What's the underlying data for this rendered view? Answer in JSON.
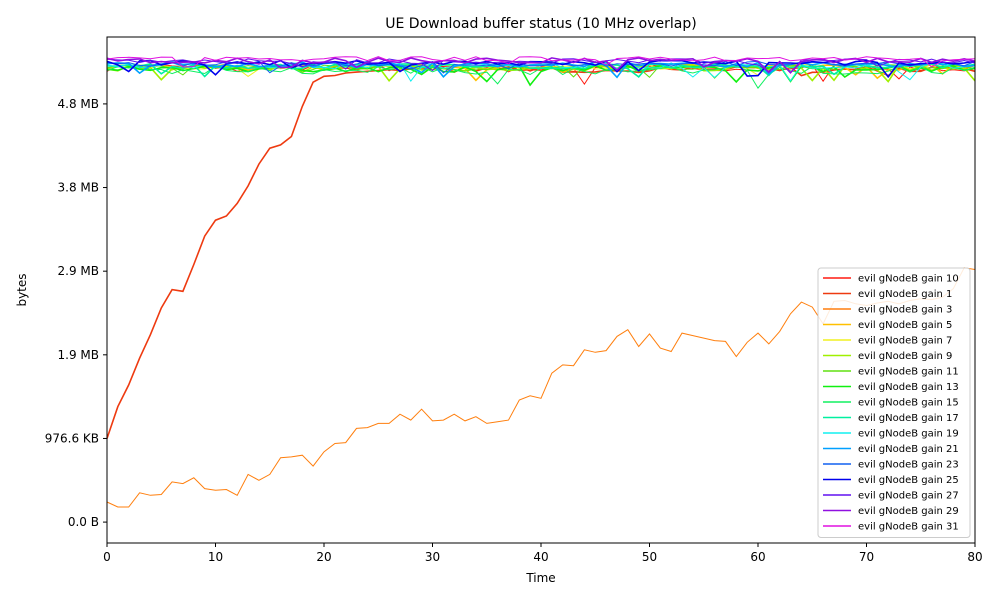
{
  "chart_data": {
    "type": "line",
    "title": "UE Download buffer status (10 MHz overlap)",
    "xlabel": "Time",
    "ylabel": "bytes",
    "xlim": [
      0,
      80
    ],
    "ylim": [
      -250000,
      5800000
    ],
    "x_ticks": [
      0,
      10,
      20,
      30,
      40,
      50,
      60,
      70,
      80
    ],
    "y_ticks": [
      {
        "value": 0,
        "label": "0.0 B"
      },
      {
        "value": 1000000,
        "label": "976.6 KB"
      },
      {
        "value": 2000000,
        "label": "1.9 MB"
      },
      {
        "value": 3000000,
        "label": "2.9 MB"
      },
      {
        "value": 4000000,
        "label": "3.8 MB"
      },
      {
        "value": 5000000,
        "label": "4.8 MB"
      }
    ],
    "grid": false,
    "legend_position": "lower-right",
    "series": [
      {
        "name": "evil gNodeB gain 10",
        "color": "#ff1a10",
        "base": 5430000,
        "amp": 40000
      },
      {
        "name": "evil gNodeB gain 1",
        "color": "#ee3a10",
        "values": [
          1000000,
          1380000,
          1640000,
          1960000,
          2240000,
          2560000,
          2780000,
          2760000,
          3080000,
          3420000,
          3610000,
          3660000,
          3810000,
          4020000,
          4280000,
          4470000,
          4510000,
          4610000,
          4970000,
          5260000,
          5330000,
          5340000,
          5370000,
          5380000,
          5390000,
          5400000,
          5410000,
          5400000,
          5420000,
          5420000,
          5410000
        ]
      },
      {
        "name": "evil gNodeB gain 3",
        "color": "#ff7f0e",
        "values": [
          240000,
          180000,
          180000,
          350000,
          320000,
          330000,
          480000,
          460000,
          530000,
          400000,
          380000,
          390000,
          320000,
          570000,
          500000,
          570000,
          770000,
          780000,
          800000,
          670000,
          840000,
          940000,
          950000,
          1120000,
          1130000,
          1180000,
          1180000,
          1290000,
          1220000,
          1350000,
          1210000,
          1220000,
          1290000,
          1210000,
          1260000,
          1180000,
          1200000,
          1220000,
          1460000,
          1510000,
          1480000,
          1780000,
          1880000,
          1870000,
          2060000,
          2030000,
          2050000,
          2220000,
          2300000,
          2100000,
          2250000,
          2080000,
          2040000,
          2260000,
          2230000,
          2200000,
          2170000,
          2160000,
          1980000,
          2150000,
          2260000,
          2130000,
          2280000,
          2490000,
          2630000,
          2570000,
          2370000,
          2640000,
          2650000,
          2610000,
          2590000,
          2620000,
          2640000,
          2610000,
          2650000,
          2670000,
          2660000,
          2690000,
          2790000,
          3040000,
          3020000
        ]
      },
      {
        "name": "evil gNodeB gain 5",
        "color": "#ffc000",
        "base": 5440000,
        "amp": 35000
      },
      {
        "name": "evil gNodeB gain 7",
        "color": "#f0f020",
        "base": 5445000,
        "amp": 30000
      },
      {
        "name": "evil gNodeB gain 9",
        "color": "#a0f000",
        "base": 5430000,
        "amp": 35000
      },
      {
        "name": "evil gNodeB gain 11",
        "color": "#60e010",
        "base": 5440000,
        "amp": 30000
      },
      {
        "name": "evil gNodeB gain 13",
        "color": "#10f010",
        "base": 5420000,
        "amp": 40000
      },
      {
        "name": "evil gNodeB gain 15",
        "color": "#10f060",
        "base": 5400000,
        "amp": 50000
      },
      {
        "name": "evil gNodeB gain 17",
        "color": "#00f0a0",
        "base": 5450000,
        "amp": 30000
      },
      {
        "name": "evil gNodeB gain 19",
        "color": "#10f0f0",
        "base": 5460000,
        "amp": 35000
      },
      {
        "name": "evil gNodeB gain 21",
        "color": "#00a0ff",
        "base": 5470000,
        "amp": 30000
      },
      {
        "name": "evil gNodeB gain 23",
        "color": "#1060f0",
        "base": 5480000,
        "amp": 30000
      },
      {
        "name": "evil gNodeB gain 25",
        "color": "#0000ee",
        "base": 5490000,
        "amp": 30000
      },
      {
        "name": "evil gNodeB gain 27",
        "color": "#6010f0",
        "base": 5510000,
        "amp": 30000
      },
      {
        "name": "evil gNodeB gain 29",
        "color": "#9010e0",
        "base": 5520000,
        "amp": 30000
      },
      {
        "name": "evil gNodeB gain 31",
        "color": "#e010e0",
        "base": 5540000,
        "amp": 25000
      }
    ]
  }
}
